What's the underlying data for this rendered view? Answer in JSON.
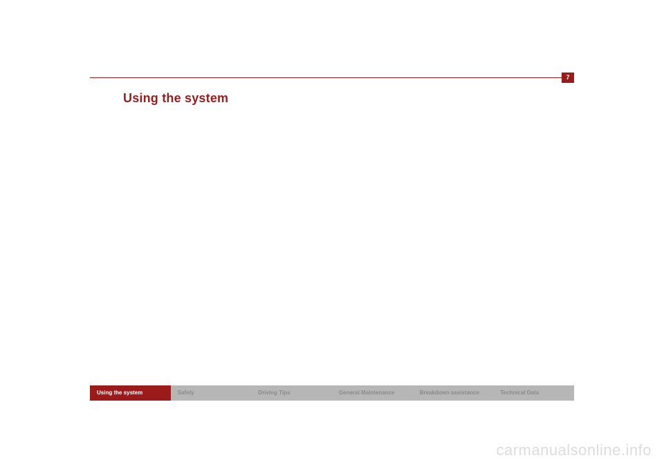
{
  "page_number": "7",
  "title": "Using the system",
  "colors": {
    "accent": "#9b1b1b",
    "tab_inactive_bg": "#b6b6b6",
    "tab_inactive_fg": "#8a8a8a",
    "watermark": "#dcdcdc",
    "page_bg": "#ffffff"
  },
  "tabs": [
    {
      "label": "Using the system",
      "active": true
    },
    {
      "label": "Safety",
      "active": false
    },
    {
      "label": "Driving Tips",
      "active": false
    },
    {
      "label": "General Maintenance",
      "active": false
    },
    {
      "label": "Breakdown assistance",
      "active": false
    },
    {
      "label": "Technical Data",
      "active": false
    }
  ],
  "watermark": "carmanualsonline.info"
}
